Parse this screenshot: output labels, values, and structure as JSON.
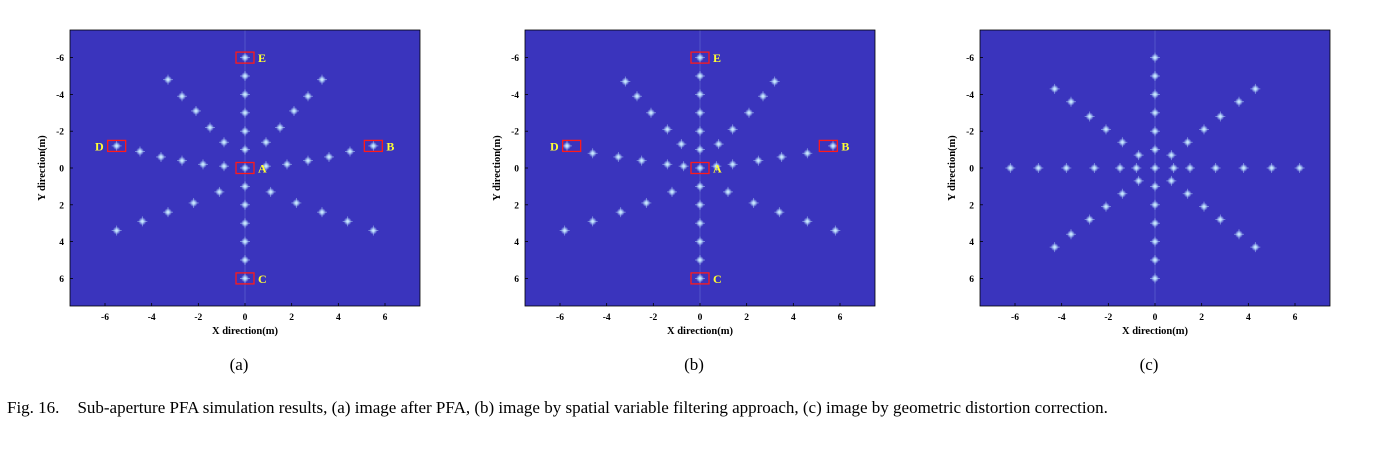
{
  "panels": [
    {
      "id": "a",
      "sublabel": "(a)",
      "xlabel": "X direction(m)",
      "ylabel": "Y direction(m)",
      "x_ticks": [
        "-6",
        "-4",
        "-2",
        "0",
        "2",
        "4",
        "6"
      ],
      "y_ticks": [
        "-6",
        "-4",
        "-2",
        "0",
        "2",
        "4",
        "6"
      ],
      "markers": [
        {
          "label": "E",
          "x": 0,
          "y": -6
        },
        {
          "label": "D",
          "x": -5.5,
          "y": -1.2
        },
        {
          "label": "B",
          "x": 5.5,
          "y": -1.2
        },
        {
          "label": "A",
          "x": 0,
          "y": 0
        },
        {
          "label": "C",
          "x": 0,
          "y": 6
        }
      ]
    },
    {
      "id": "b",
      "sublabel": "(b)",
      "xlabel": "X direction(m)",
      "ylabel": "Y direction(m)",
      "x_ticks": [
        "-6",
        "-4",
        "-2",
        "0",
        "2",
        "4",
        "6"
      ],
      "y_ticks": [
        "-6",
        "-4",
        "-2",
        "0",
        "2",
        "4",
        "6"
      ],
      "markers": [
        {
          "label": "E",
          "x": 0,
          "y": -6
        },
        {
          "label": "D",
          "x": -5.5,
          "y": -1.2
        },
        {
          "label": "B",
          "x": 5.5,
          "y": -1.2
        },
        {
          "label": "A",
          "x": 0,
          "y": 0
        },
        {
          "label": "C",
          "x": 0,
          "y": 6
        }
      ]
    },
    {
      "id": "c",
      "sublabel": "(c)",
      "xlabel": "X direction(m)",
      "ylabel": "Y direction(m)",
      "x_ticks": [
        "-6",
        "-4",
        "-2",
        "0",
        "2",
        "4",
        "6"
      ],
      "y_ticks": [
        "-6",
        "-4",
        "-2",
        "0",
        "2",
        "4",
        "6"
      ],
      "markers": []
    }
  ],
  "caption": {
    "figure_number": "Fig. 16.",
    "text": "Sub-aperture PFA simulation results, (a) image after PFA, (b) image by spatial variable filtering approach, (c) image by geometric distortion correction."
  },
  "colors": {
    "background": "#3a34bd",
    "point": "#bfe6ff",
    "marker_box": "#ff1a1a",
    "marker_text": "#ffff33"
  },
  "chart_data": [
    {
      "type": "scatter",
      "title": "",
      "xlabel": "X direction(m)",
      "ylabel": "Y direction(m)",
      "xlim": [
        -7.5,
        7.5
      ],
      "ylim": [
        -7.5,
        7.5
      ],
      "y_reversed": true,
      "series": [
        {
          "values": [
            [
              0,
              -6
            ],
            [
              0,
              -5
            ],
            [
              0,
              -4
            ],
            [
              0,
              -3
            ],
            [
              0,
              -2
            ],
            [
              0,
              -1
            ],
            [
              0,
              0
            ],
            [
              0,
              1
            ],
            [
              0,
              2
            ],
            [
              0,
              3
            ],
            [
              0,
              4
            ],
            [
              0,
              5
            ],
            [
              0,
              6
            ],
            [
              -5.5,
              -1.2
            ],
            [
              -4.5,
              -0.9
            ],
            [
              -3.6,
              -0.6
            ],
            [
              -2.7,
              -0.4
            ],
            [
              -1.8,
              -0.2
            ],
            [
              -0.9,
              -0.1
            ],
            [
              5.5,
              -1.2
            ],
            [
              4.5,
              -0.9
            ],
            [
              3.6,
              -0.6
            ],
            [
              2.7,
              -0.4
            ],
            [
              1.8,
              -0.2
            ],
            [
              0.9,
              -0.1
            ],
            [
              -3.3,
              -4.8
            ],
            [
              -2.7,
              -3.9
            ],
            [
              -2.1,
              -3.1
            ],
            [
              -1.5,
              -2.2
            ],
            [
              -0.9,
              -1.4
            ],
            [
              3.3,
              -4.8
            ],
            [
              2.7,
              -3.9
            ],
            [
              2.1,
              -3.1
            ],
            [
              1.5,
              -2.2
            ],
            [
              0.9,
              -1.4
            ],
            [
              -5.5,
              3.4
            ],
            [
              -4.4,
              2.9
            ],
            [
              -3.3,
              2.4
            ],
            [
              -2.2,
              1.9
            ],
            [
              -1.1,
              1.3
            ],
            [
              5.5,
              3.4
            ],
            [
              4.4,
              2.9
            ],
            [
              3.3,
              2.4
            ],
            [
              2.2,
              1.9
            ],
            [
              1.1,
              1.3
            ]
          ]
        }
      ]
    },
    {
      "type": "scatter",
      "title": "",
      "xlabel": "X direction(m)",
      "ylabel": "Y direction(m)",
      "xlim": [
        -7.5,
        7.5
      ],
      "ylim": [
        -7.5,
        7.5
      ],
      "y_reversed": true,
      "series": [
        {
          "values": [
            [
              0,
              -6
            ],
            [
              0,
              -5
            ],
            [
              0,
              -4
            ],
            [
              0,
              -3
            ],
            [
              0,
              -2
            ],
            [
              0,
              -1
            ],
            [
              0,
              0
            ],
            [
              0,
              1
            ],
            [
              0,
              2
            ],
            [
              0,
              3
            ],
            [
              0,
              4
            ],
            [
              0,
              5
            ],
            [
              0,
              6
            ],
            [
              -5.7,
              -1.2
            ],
            [
              -4.6,
              -0.8
            ],
            [
              -3.5,
              -0.6
            ],
            [
              -2.5,
              -0.4
            ],
            [
              -1.4,
              -0.2
            ],
            [
              -0.7,
              -0.1
            ],
            [
              5.7,
              -1.2
            ],
            [
              4.6,
              -0.8
            ],
            [
              3.5,
              -0.6
            ],
            [
              2.5,
              -0.4
            ],
            [
              1.4,
              -0.2
            ],
            [
              0.7,
              -0.1
            ],
            [
              -3.2,
              -4.7
            ],
            [
              -2.7,
              -3.9
            ],
            [
              -2.1,
              -3.0
            ],
            [
              -1.4,
              -2.1
            ],
            [
              -0.8,
              -1.3
            ],
            [
              3.2,
              -4.7
            ],
            [
              2.7,
              -3.9
            ],
            [
              2.1,
              -3.0
            ],
            [
              1.4,
              -2.1
            ],
            [
              0.8,
              -1.3
            ],
            [
              -5.8,
              3.4
            ],
            [
              -4.6,
              2.9
            ],
            [
              -3.4,
              2.4
            ],
            [
              -2.3,
              1.9
            ],
            [
              -1.2,
              1.3
            ],
            [
              5.8,
              3.4
            ],
            [
              4.6,
              2.9
            ],
            [
              3.4,
              2.4
            ],
            [
              2.3,
              1.9
            ],
            [
              1.2,
              1.3
            ]
          ]
        }
      ]
    },
    {
      "type": "scatter",
      "title": "",
      "xlabel": "X direction(m)",
      "ylabel": "Y direction(m)",
      "xlim": [
        -7.5,
        7.5
      ],
      "ylim": [
        -7.5,
        7.5
      ],
      "y_reversed": true,
      "series": [
        {
          "values": [
            [
              0,
              -6
            ],
            [
              0,
              -5
            ],
            [
              0,
              -4
            ],
            [
              0,
              -3
            ],
            [
              0,
              -2
            ],
            [
              0,
              -1
            ],
            [
              0,
              0
            ],
            [
              0,
              1
            ],
            [
              0,
              2
            ],
            [
              0,
              3
            ],
            [
              0,
              4
            ],
            [
              0,
              5
            ],
            [
              0,
              6
            ],
            [
              -6.2,
              0
            ],
            [
              -5.0,
              0
            ],
            [
              -3.8,
              0
            ],
            [
              -2.6,
              0
            ],
            [
              -1.5,
              0
            ],
            [
              -0.8,
              0
            ],
            [
              6.2,
              0
            ],
            [
              5.0,
              0
            ],
            [
              3.8,
              0
            ],
            [
              2.6,
              0
            ],
            [
              1.5,
              0
            ],
            [
              0.8,
              0
            ],
            [
              -4.3,
              -4.3
            ],
            [
              -3.6,
              -3.6
            ],
            [
              -2.8,
              -2.8
            ],
            [
              -2.1,
              -2.1
            ],
            [
              -1.4,
              -1.4
            ],
            [
              -0.7,
              -0.7
            ],
            [
              4.3,
              -4.3
            ],
            [
              3.6,
              -3.6
            ],
            [
              2.8,
              -2.8
            ],
            [
              2.1,
              -2.1
            ],
            [
              1.4,
              -1.4
            ],
            [
              0.7,
              -0.7
            ],
            [
              -4.3,
              4.3
            ],
            [
              -3.6,
              3.6
            ],
            [
              -2.8,
              2.8
            ],
            [
              -2.1,
              2.1
            ],
            [
              -1.4,
              1.4
            ],
            [
              -0.7,
              0.7
            ],
            [
              4.3,
              4.3
            ],
            [
              3.6,
              3.6
            ],
            [
              2.8,
              2.8
            ],
            [
              2.1,
              2.1
            ],
            [
              1.4,
              1.4
            ],
            [
              0.7,
              0.7
            ]
          ]
        }
      ]
    }
  ]
}
